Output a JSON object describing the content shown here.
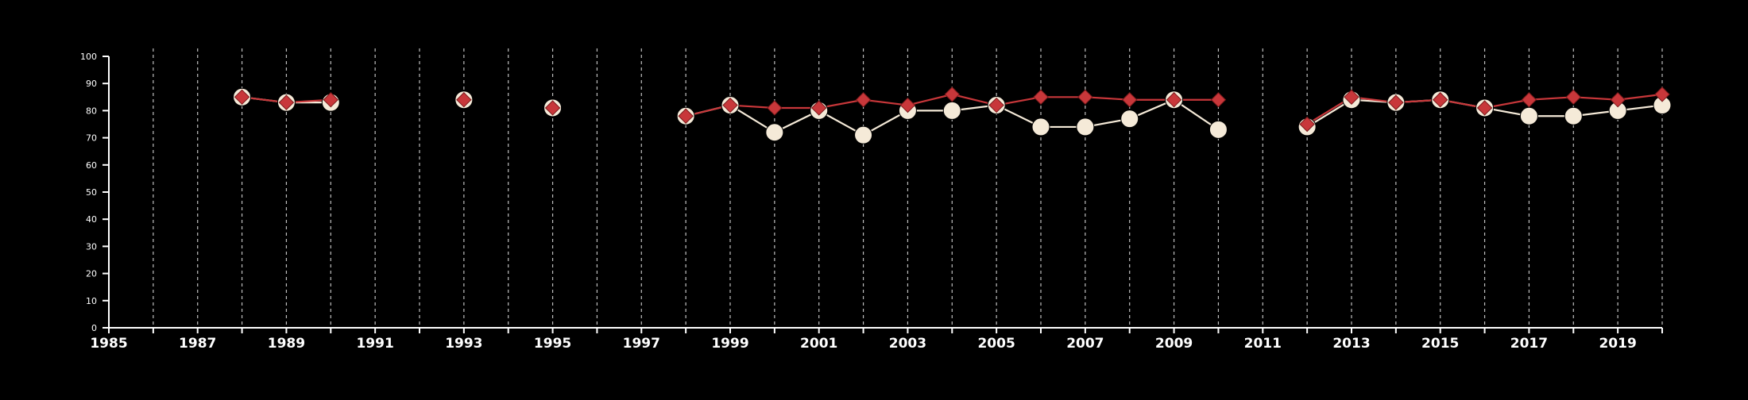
{
  "colors": {
    "background": "#000000",
    "axis": "#ffffff",
    "grid": "#bfbfbf",
    "series_a_line": "#f5ead8",
    "series_a_marker": "#f5ead8",
    "series_b_line": "#c8373a",
    "series_b_marker": "#c8373a"
  },
  "chart_data": {
    "type": "line",
    "title": "",
    "xlabel": "",
    "ylabel": "",
    "xlim": [
      1985,
      2020
    ],
    "ylim": [
      0,
      100
    ],
    "x_ticks": [
      1985,
      1987,
      1989,
      1991,
      1993,
      1995,
      1997,
      1999,
      2001,
      2003,
      2005,
      2007,
      2009,
      2011,
      2013,
      2015,
      2017,
      2019
    ],
    "y_ticks": [
      0,
      10,
      20,
      30,
      40,
      50,
      60,
      70,
      80,
      90,
      100
    ],
    "grid": "vertical dashed lines at every year",
    "legend": "none",
    "series": [
      {
        "marker": "circle",
        "color_key": "series_a_marker",
        "points": [
          [
            1988,
            85
          ],
          [
            1989,
            83
          ],
          [
            1990,
            83
          ],
          [
            1993,
            84
          ],
          [
            1995,
            81
          ],
          [
            1998,
            78
          ],
          [
            1999,
            82
          ],
          [
            2000,
            72
          ],
          [
            2001,
            80
          ],
          [
            2002,
            71
          ],
          [
            2003,
            80
          ],
          [
            2004,
            80
          ],
          [
            2005,
            82
          ],
          [
            2006,
            74
          ],
          [
            2007,
            74
          ],
          [
            2008,
            77
          ],
          [
            2009,
            84
          ],
          [
            2010,
            73
          ],
          [
            2012,
            74
          ],
          [
            2013,
            84
          ],
          [
            2014,
            83
          ],
          [
            2015,
            84
          ],
          [
            2016,
            81
          ],
          [
            2017,
            78
          ],
          [
            2018,
            78
          ],
          [
            2019,
            80
          ],
          [
            2020,
            82
          ]
        ]
      },
      {
        "marker": "diamond",
        "color_key": "series_b_marker",
        "points": [
          [
            1988,
            85
          ],
          [
            1989,
            83
          ],
          [
            1990,
            84
          ],
          [
            1993,
            84
          ],
          [
            1995,
            81
          ],
          [
            1998,
            78
          ],
          [
            1999,
            82
          ],
          [
            2000,
            81
          ],
          [
            2001,
            81
          ],
          [
            2002,
            84
          ],
          [
            2003,
            82
          ],
          [
            2004,
            86
          ],
          [
            2005,
            82
          ],
          [
            2006,
            85
          ],
          [
            2007,
            85
          ],
          [
            2008,
            84
          ],
          [
            2009,
            84
          ],
          [
            2010,
            84
          ],
          [
            2012,
            75
          ],
          [
            2013,
            85
          ],
          [
            2014,
            83
          ],
          [
            2015,
            84
          ],
          [
            2016,
            81
          ],
          [
            2017,
            84
          ],
          [
            2018,
            85
          ],
          [
            2019,
            84
          ],
          [
            2020,
            86
          ]
        ]
      }
    ]
  }
}
